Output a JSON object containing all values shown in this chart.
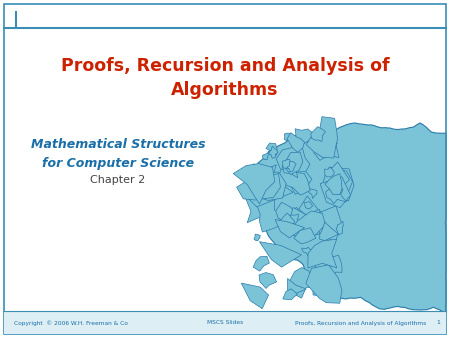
{
  "title_line1": "Proofs, Recursion and Analysis of",
  "title_line2": "Algorithms",
  "title_color": "#cc2200",
  "subtitle_line1": "Mathematical Structures",
  "subtitle_line2": "for Computer Science",
  "subtitle_line3": "Chapter 2",
  "subtitle_color": "#1a6fa8",
  "chapter_color": "#444444",
  "bg_color": "#ffffff",
  "border_color": "#3a8db5",
  "top_line_color": "#3a8db5",
  "footer_bg_color": "#ddeef5",
  "footer_text_color": "#1a6fa8",
  "footer_left": "Copyright  © 2006 W.H. Freeman & Co",
  "footer_center": "MSCS Slides",
  "footer_right": "Proofs, Recursion and Analysis of Algorithms",
  "fractal_fill": "#7bc4d8",
  "fractal_edge": "#2a7aaa"
}
